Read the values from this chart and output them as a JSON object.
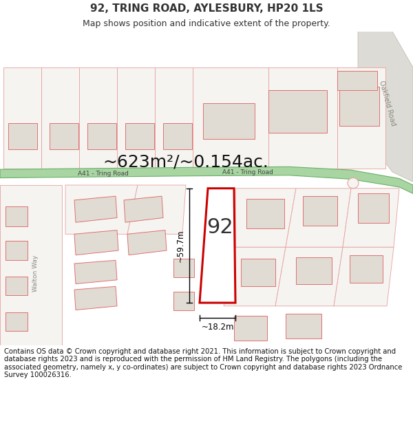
{
  "title": "92, TRING ROAD, AYLESBURY, HP20 1LS",
  "subtitle": "Map shows position and indicative extent of the property.",
  "area_text": "~623m²/~0.154ac.",
  "label_92": "92",
  "dim_height": "~59.7m",
  "dim_width": "~18.2m",
  "road_label1": "A41 - Tring Road",
  "road_label2": "A41 - Tring Road",
  "road_label_right": "Oakfield Road",
  "road_label_left": "Walton Way",
  "footer_text": "Contains OS data © Crown copyright and database right 2021. This information is subject to Crown copyright and database rights 2023 and is reproduced with the permission of HM Land Registry. The polygons (including the associated geometry, namely x, y co-ordinates) are subject to Crown copyright and database rights 2023 Ordnance Survey 100026316.",
  "map_bg": "#f5f4f0",
  "road_green_fill": "#a8d5a2",
  "road_green_border": "#6ab06a",
  "building_fill": "#e0dcd4",
  "building_stroke": "#e07070",
  "plot_stroke": "#cc0000",
  "plot_fill": "#ffffff",
  "outline_stroke": "#e8a0a0",
  "text_color": "#333333",
  "footer_color": "#111111",
  "title_fontsize": 11,
  "subtitle_fontsize": 9,
  "area_fontsize": 18,
  "footer_fontsize": 7.2
}
